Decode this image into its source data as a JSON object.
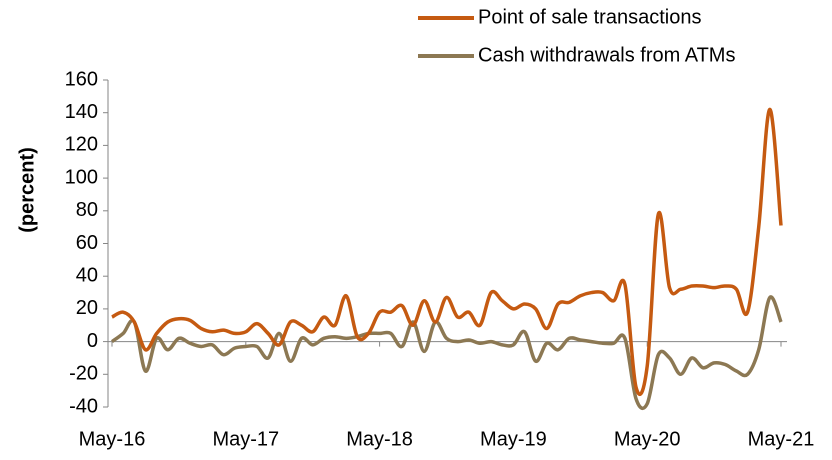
{
  "chart_data": {
    "type": "line",
    "y_label": "(percent)",
    "categories": [
      "May-16",
      null,
      null,
      null,
      null,
      null,
      null,
      null,
      null,
      null,
      null,
      null,
      "May-17",
      null,
      null,
      null,
      null,
      null,
      null,
      null,
      null,
      null,
      null,
      null,
      "May-18",
      null,
      null,
      null,
      null,
      null,
      null,
      null,
      null,
      null,
      null,
      null,
      "May-19",
      null,
      null,
      null,
      null,
      null,
      null,
      null,
      null,
      null,
      null,
      null,
      "May-20",
      null,
      null,
      null,
      null,
      null,
      null,
      null,
      null,
      null,
      null,
      null,
      "May-21"
    ],
    "series": [
      {
        "name": "Point of sale transactions",
        "color": "#c55a11",
        "values": [
          15,
          18,
          12,
          -5,
          5,
          12,
          14,
          13,
          8,
          6,
          7,
          5,
          6,
          11,
          5,
          -2,
          12,
          10,
          6,
          15,
          10,
          28,
          3,
          5,
          18,
          18,
          22,
          10,
          25,
          12,
          27,
          15,
          18,
          10,
          30,
          25,
          20,
          23,
          20,
          8,
          23,
          24,
          28,
          30,
          30,
          25,
          35,
          -28,
          -15,
          78,
          33,
          32,
          34,
          34,
          33,
          34,
          32,
          18,
          70,
          142,
          71
        ]
      },
      {
        "name": "Cash withdrawals from ATMs",
        "color": "#8c7853",
        "values": [
          0,
          5,
          12,
          -18,
          2,
          -5,
          2,
          -1,
          -3,
          -2,
          -8,
          -4,
          -3,
          -3,
          -10,
          5,
          -12,
          2,
          -2,
          2,
          3,
          2,
          3,
          5,
          5,
          5,
          -3,
          12,
          -6,
          12,
          2,
          0,
          1,
          -1,
          0,
          -2,
          -2,
          6,
          -12,
          -1,
          -5,
          2,
          1,
          0,
          -1,
          -1,
          2,
          -35,
          -38,
          -8,
          -10,
          -20,
          -10,
          -16,
          -13,
          -14,
          -18,
          -20,
          -5,
          27,
          12
        ]
      }
    ],
    "ylim": [
      -40,
      160
    ],
    "yticks": [
      -40,
      -20,
      0,
      20,
      40,
      60,
      80,
      100,
      120,
      140,
      160
    ],
    "grid": false,
    "legend": "top-right"
  }
}
